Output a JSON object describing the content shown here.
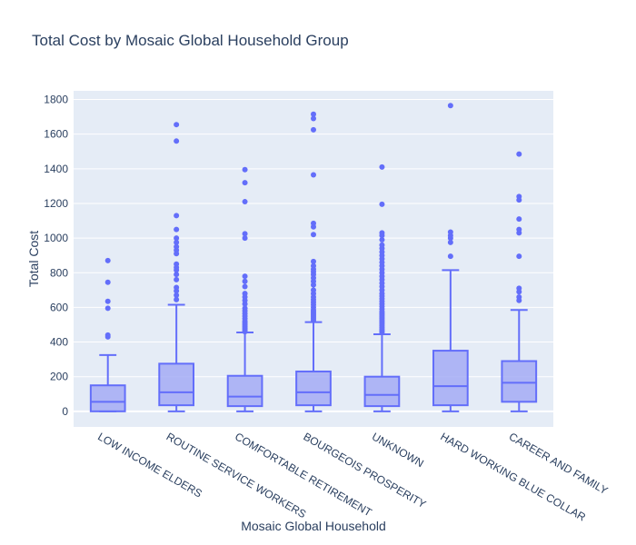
{
  "chart_data": {
    "type": "box",
    "title": "Total Cost by Mosaic Global Household Group",
    "xlabel": "Mosaic Global Household",
    "ylabel": "Total Cost",
    "ylim": [
      -90,
      1850
    ],
    "yticks": [
      0,
      200,
      400,
      600,
      800,
      1000,
      1200,
      1400,
      1600,
      1800
    ],
    "ytick_labels": [
      "0",
      "200",
      "400",
      "600",
      "800",
      "1000",
      "1200",
      "1400",
      "1600",
      "1800"
    ],
    "grid": true,
    "legend": "none",
    "colors": {
      "box_line": "#636efa",
      "box_fill": "#a5abf5",
      "plot_bg": "#e5ecf6",
      "text": "#2a3f5f"
    },
    "categories": [
      "LOW INCOME ELDERS",
      "ROUTINE SERVICE WORKERS",
      "COMFORTABLE RETIREMENT",
      "BOURGEOIS PROSPERITY",
      "UNKNOWN",
      "HARD WORKING BLUE COLLAR",
      "CAREER AND FAMILY"
    ],
    "boxes": [
      {
        "min": 0,
        "q1": 0,
        "median": 55,
        "q3": 150,
        "max": 325,
        "outliers": [
          430,
          440,
          595,
          635,
          745,
          870
        ]
      },
      {
        "min": 0,
        "q1": 35,
        "median": 110,
        "q3": 275,
        "max": 615,
        "outliers": [
          645,
          670,
          695,
          715,
          760,
          790,
          815,
          830,
          850,
          910,
          930,
          950,
          975,
          1000,
          1050,
          1130,
          1560,
          1655
        ]
      },
      {
        "min": 0,
        "q1": 30,
        "median": 85,
        "q3": 205,
        "max": 455,
        "outliers": [
          460,
          470,
          480,
          490,
          500,
          510,
          520,
          535,
          550,
          565,
          580,
          595,
          620,
          640,
          660,
          680,
          720,
          750,
          780,
          1000,
          1025,
          1210,
          1320,
          1395
        ]
      },
      {
        "min": 0,
        "q1": 35,
        "median": 110,
        "q3": 230,
        "max": 515,
        "outliers": [
          525,
          535,
          545,
          555,
          565,
          575,
          585,
          600,
          615,
          630,
          645,
          660,
          680,
          700,
          730,
          750,
          770,
          790,
          805,
          820,
          840,
          865,
          1020,
          1065,
          1085,
          1365,
          1625,
          1690,
          1715
        ]
      },
      {
        "min": 0,
        "q1": 30,
        "median": 95,
        "q3": 200,
        "max": 445,
        "outliers": [
          455,
          465,
          475,
          485,
          495,
          505,
          515,
          525,
          535,
          545,
          555,
          565,
          575,
          590,
          605,
          620,
          635,
          650,
          665,
          680,
          700,
          720,
          740,
          760,
          780,
          800,
          820,
          840,
          860,
          880,
          900,
          920,
          940,
          960,
          990,
          1015,
          1030,
          1195,
          1410
        ]
      },
      {
        "min": 0,
        "q1": 35,
        "median": 145,
        "q3": 350,
        "max": 815,
        "outliers": [
          895,
          975,
          1000,
          1015,
          1035,
          1765
        ]
      },
      {
        "min": 0,
        "q1": 55,
        "median": 165,
        "q3": 290,
        "max": 585,
        "outliers": [
          640,
          660,
          690,
          710,
          895,
          1030,
          1050,
          1110,
          1220,
          1240,
          1485
        ]
      }
    ]
  }
}
